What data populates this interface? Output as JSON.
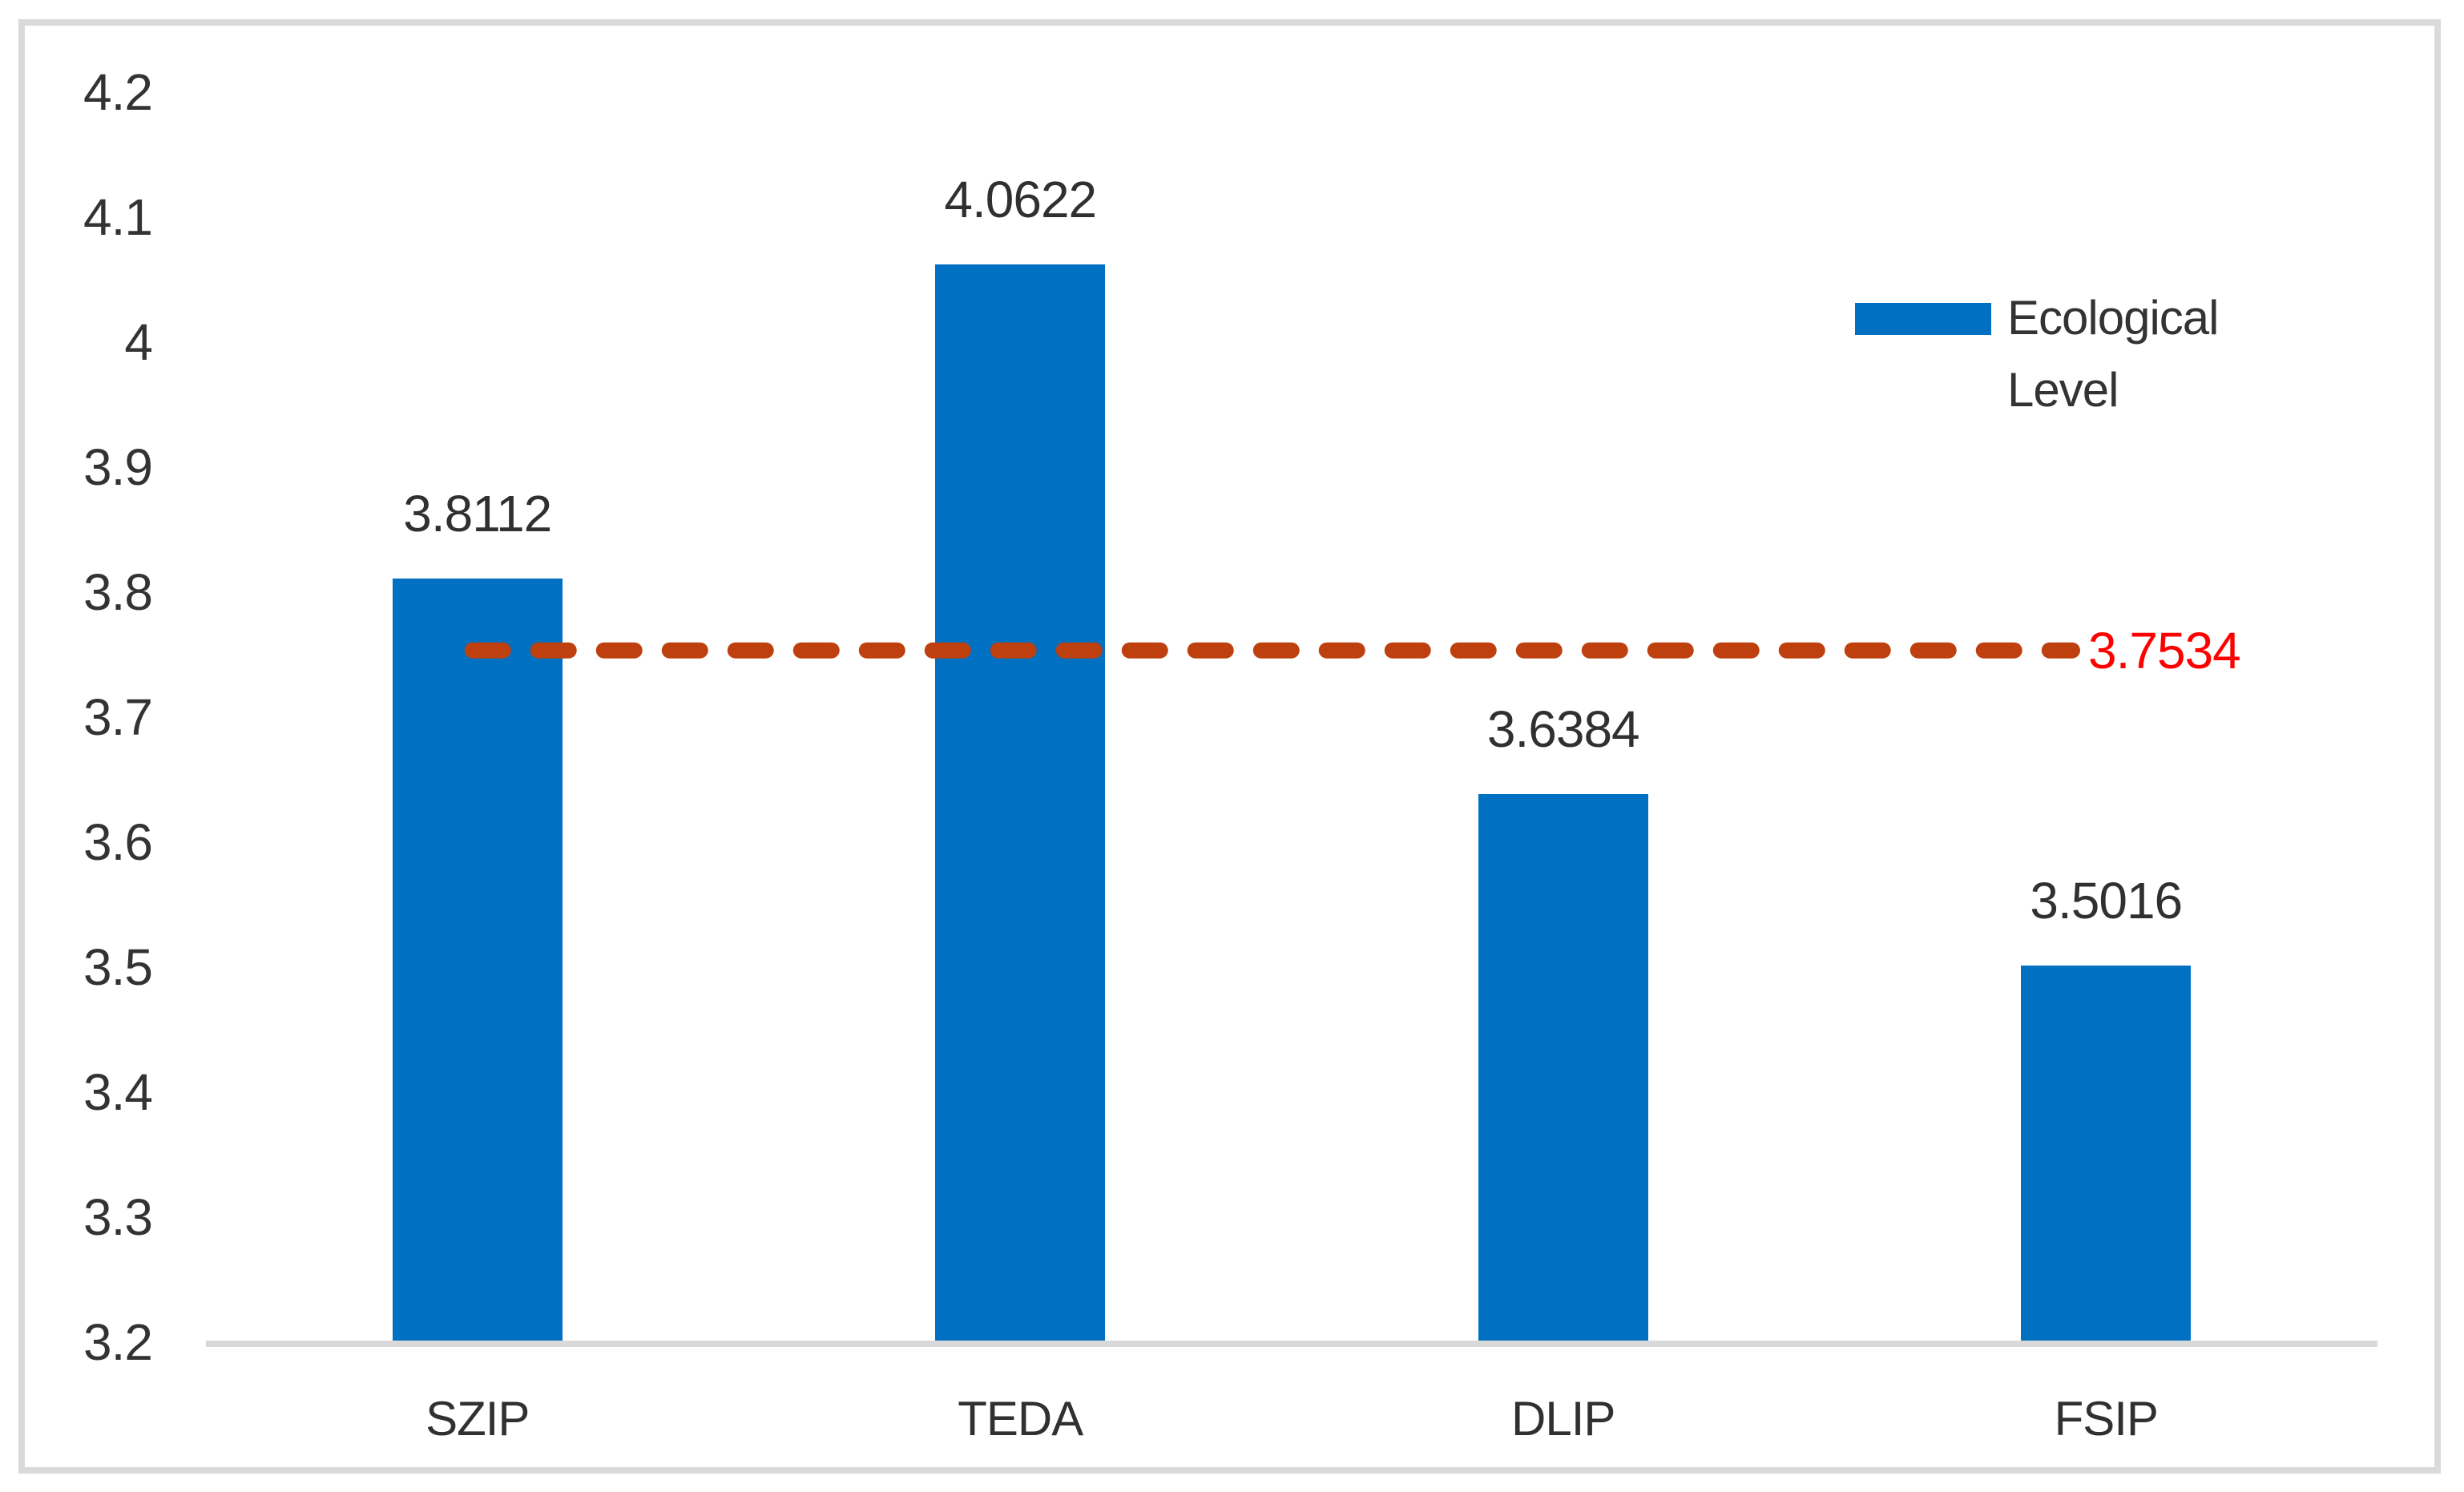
{
  "chart_data": {
    "type": "bar",
    "title": "",
    "categories": [
      "SZIP",
      "TEDA",
      "DLIP",
      "FSIP"
    ],
    "series": [
      {
        "name": "Ecological Level",
        "values": [
          3.8112,
          4.0622,
          3.6384,
          3.5016
        ],
        "color": "#0070C2"
      }
    ],
    "data_labels": [
      "3.8112",
      "4.0622",
      "3.6384",
      "3.5016"
    ],
    "ylim": [
      3.2,
      4.2
    ],
    "ytick_step": 0.1,
    "yticks": [
      [
        "4.2",
        4.2
      ],
      [
        "4.1",
        4.1
      ],
      [
        "4",
        4.0
      ],
      [
        "3.9",
        3.9
      ],
      [
        "3.8",
        3.8
      ],
      [
        "3.7",
        3.7
      ],
      [
        "3.6",
        3.6
      ],
      [
        "3.5",
        3.5
      ],
      [
        "3.4",
        3.4
      ],
      [
        "3.3",
        3.3
      ],
      [
        "3.2",
        3.2
      ]
    ],
    "grid": false,
    "legend_position": "upper-right-inside",
    "legend": {
      "label": "Ecological Level",
      "swatch_color": "#0070C2"
    },
    "reference_line": {
      "value": 3.7534,
      "label": "3.7534",
      "style": "dashed",
      "line_color": "#BE400F",
      "label_color": "#FF0000"
    },
    "colors": {
      "bar": "#0070C2",
      "axis_line": "#D9D9D9",
      "border": "#DADADA",
      "text": "#333333",
      "background": "#FFFFFF"
    }
  }
}
